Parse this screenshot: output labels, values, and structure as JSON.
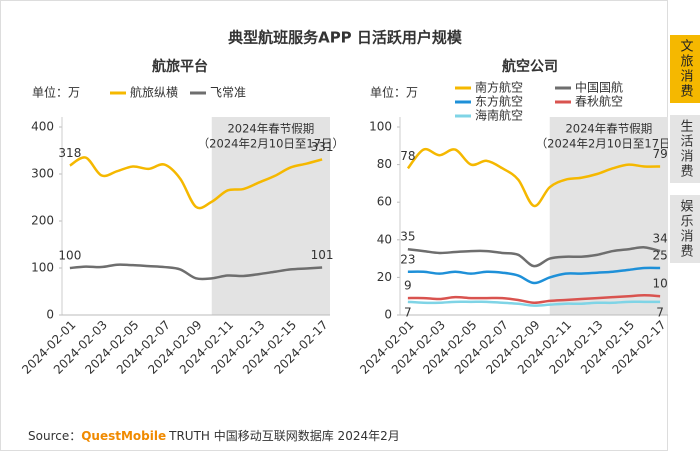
{
  "title": "典型航班服务APP 日活跃用户规模",
  "tabs": [
    "文旅消费",
    "生活消费",
    "娱乐消费"
  ],
  "source": {
    "prefix": "Source：",
    "brand": "QuestMobile",
    "rest": "TRUTH 中国移动互联网数据库 2024年2月"
  },
  "chart_data": [
    {
      "type": "line",
      "title": "航旅平台",
      "unit": "单位：万",
      "categories": [
        "2024-02-01",
        null,
        "2024-02-03",
        null,
        "2024-02-05",
        null,
        "2024-02-07",
        null,
        "2024-02-09",
        null,
        "2024-02-11",
        null,
        "2024-02-13",
        null,
        "2024-02-15",
        null,
        "2024-02-17"
      ],
      "series": [
        {
          "name": "航旅纵横",
          "color": "#f5b800",
          "values": [
            318,
            335,
            297,
            306,
            316,
            311,
            320,
            290,
            230,
            241,
            265,
            268,
            282,
            296,
            314,
            322,
            331
          ]
        },
        {
          "name": "飞常准",
          "color": "#6e6e6e",
          "values": [
            100,
            103,
            102,
            107,
            106,
            104,
            102,
            97,
            78,
            78,
            84,
            83,
            87,
            92,
            97,
            99,
            101
          ]
        }
      ],
      "ylim": [
        0,
        400
      ],
      "yticks": [
        0,
        100,
        200,
        300,
        400
      ],
      "highlight": {
        "text": [
          "2024年春节假期",
          "（2024年2月10日至17日）"
        ],
        "from": 9,
        "to": 16
      }
    },
    {
      "type": "line",
      "title": "航空公司",
      "unit": "单位：万",
      "categories": [
        "2024-02-01",
        null,
        "2024-02-03",
        null,
        "2024-02-05",
        null,
        "2024-02-07",
        null,
        "2024-02-09",
        null,
        "2024-02-11",
        null,
        "2024-02-13",
        null,
        "2024-02-15",
        null,
        "2024-02-17"
      ],
      "series": [
        {
          "name": "南方航空",
          "color": "#f5b800",
          "values": [
            78,
            88,
            85,
            88,
            80,
            82,
            78,
            72,
            58,
            68,
            72,
            73,
            75,
            78,
            80,
            79,
            79
          ]
        },
        {
          "name": "中国国航",
          "color": "#6e6e6e",
          "values": [
            35,
            34,
            33,
            33.5,
            34,
            34,
            33,
            32,
            26,
            30,
            31,
            31,
            32,
            34,
            35,
            36,
            34
          ]
        },
        {
          "name": "东方航空",
          "color": "#1e90d8",
          "values": [
            23,
            23,
            22,
            23,
            22,
            23,
            22.5,
            21,
            17,
            20,
            22,
            22,
            22.5,
            23,
            24,
            25,
            25
          ]
        },
        {
          "name": "春秋航空",
          "color": "#d9534f",
          "values": [
            9,
            9,
            8.5,
            9.5,
            9,
            9,
            9,
            8,
            6.5,
            7.5,
            8,
            8.5,
            9,
            9.5,
            10,
            10.5,
            10
          ]
        },
        {
          "name": "海南航空",
          "color": "#7fd4e6",
          "values": [
            7,
            6.5,
            6.5,
            7,
            7,
            7,
            6.5,
            6,
            5,
            5.5,
            6,
            6,
            6.5,
            6.5,
            7,
            7,
            7
          ]
        }
      ],
      "ylim": [
        0,
        100
      ],
      "yticks": [
        0,
        20,
        40,
        60,
        80,
        100
      ],
      "highlight": {
        "text": [
          "2024年春节假期",
          "（2024年2月10日至17日）"
        ],
        "from": 9,
        "to": 16
      }
    }
  ]
}
